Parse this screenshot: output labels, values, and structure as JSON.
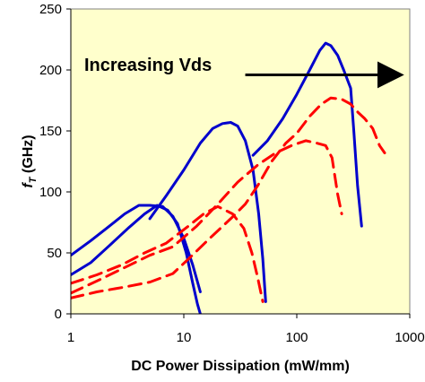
{
  "chart_data": {
    "type": "line",
    "xlabel": "DC Power Dissipation (mW/mm)",
    "ylabel": "f",
    "ylabel_sub": "T",
    "ylabel_unit": " (GHz)",
    "x_scale": "log",
    "xlim": [
      1,
      1000
    ],
    "ylim": [
      0,
      250
    ],
    "x_ticks": [
      1,
      10,
      100,
      1000
    ],
    "x_tick_labels": [
      "1",
      "10",
      "100",
      "1000"
    ],
    "y_ticks": [
      0,
      50,
      100,
      150,
      200,
      250
    ],
    "y_tick_labels": [
      "0",
      "50",
      "100",
      "150",
      "200",
      "250"
    ],
    "grid": false,
    "background": "#ffffcc",
    "annotation": {
      "text": "Increasing Vds",
      "arrow_from": [
        35,
        196
      ],
      "arrow_to": [
        800,
        196
      ]
    },
    "series": [
      {
        "color": "#0000cc",
        "style": "solid",
        "points": [
          [
            1,
            32
          ],
          [
            1.5,
            42
          ],
          [
            2.2,
            56
          ],
          [
            3.2,
            70
          ],
          [
            4.5,
            82
          ],
          [
            5.8,
            89
          ],
          [
            7.2,
            85
          ],
          [
            8.8,
            74
          ],
          [
            10.5,
            50
          ],
          [
            12,
            25
          ],
          [
            13.2,
            8
          ],
          [
            14,
            0
          ]
        ]
      },
      {
        "color": "#0000cc",
        "style": "solid",
        "points": [
          [
            1,
            48
          ],
          [
            1.5,
            60
          ],
          [
            2.2,
            72
          ],
          [
            3,
            82
          ],
          [
            4,
            89
          ],
          [
            5,
            89
          ],
          [
            6.5,
            88
          ],
          [
            8,
            80
          ],
          [
            10,
            62
          ],
          [
            12,
            40
          ],
          [
            14,
            18
          ]
        ]
      },
      {
        "color": "#0000cc",
        "style": "solid",
        "points": [
          [
            5,
            78
          ],
          [
            7,
            97
          ],
          [
            10,
            118
          ],
          [
            14,
            140
          ],
          [
            18,
            152
          ],
          [
            22,
            156
          ],
          [
            26,
            157
          ],
          [
            30,
            154
          ],
          [
            35,
            142
          ],
          [
            41,
            118
          ],
          [
            46,
            82
          ],
          [
            50,
            45
          ],
          [
            53,
            10
          ]
        ]
      },
      {
        "color": "#0000cc",
        "style": "solid",
        "points": [
          [
            41,
            130
          ],
          [
            55,
            142
          ],
          [
            75,
            160
          ],
          [
            100,
            180
          ],
          [
            130,
            200
          ],
          [
            160,
            216
          ],
          [
            180,
            222
          ],
          [
            200,
            220
          ],
          [
            230,
            212
          ],
          [
            260,
            200
          ],
          [
            300,
            185
          ],
          [
            320,
            150
          ],
          [
            345,
            105
          ],
          [
            375,
            72
          ]
        ]
      },
      {
        "color": "#ff0000",
        "style": "dashed",
        "points": [
          [
            1,
            25
          ],
          [
            1.7,
            32
          ],
          [
            2.8,
            40
          ],
          [
            4.5,
            50
          ],
          [
            7,
            58
          ],
          [
            11,
            72
          ],
          [
            15,
            82
          ],
          [
            20,
            88
          ],
          [
            27,
            82
          ],
          [
            34,
            70
          ],
          [
            40,
            50
          ],
          [
            45,
            30
          ],
          [
            50,
            10
          ]
        ]
      },
      {
        "color": "#ff0000",
        "style": "dashed",
        "points": [
          [
            1,
            17
          ],
          [
            1.8,
            28
          ],
          [
            3,
            38
          ],
          [
            5,
            48
          ],
          [
            8,
            55
          ],
          [
            13,
            72
          ],
          [
            20,
            90
          ],
          [
            30,
            108
          ],
          [
            45,
            122
          ],
          [
            65,
            132
          ],
          [
            90,
            138
          ],
          [
            120,
            142
          ],
          [
            150,
            140
          ],
          [
            180,
            138
          ],
          [
            205,
            128
          ],
          [
            230,
            98
          ],
          [
            250,
            82
          ]
        ]
      },
      {
        "color": "#ff0000",
        "style": "dashed",
        "points": [
          [
            1,
            13
          ],
          [
            1.7,
            18
          ],
          [
            3,
            22
          ],
          [
            5,
            26
          ],
          [
            8,
            33
          ],
          [
            11,
            45
          ],
          [
            17,
            62
          ],
          [
            26,
            78
          ],
          [
            35,
            90
          ],
          [
            45,
            105
          ],
          [
            60,
            125
          ],
          [
            80,
            140
          ],
          [
            100,
            148
          ],
          [
            130,
            162
          ],
          [
            165,
            172
          ],
          [
            200,
            177
          ],
          [
            250,
            176
          ],
          [
            300,
            172
          ],
          [
            350,
            165
          ],
          [
            400,
            160
          ],
          [
            470,
            152
          ],
          [
            540,
            138
          ],
          [
            600,
            132
          ]
        ]
      }
    ]
  }
}
